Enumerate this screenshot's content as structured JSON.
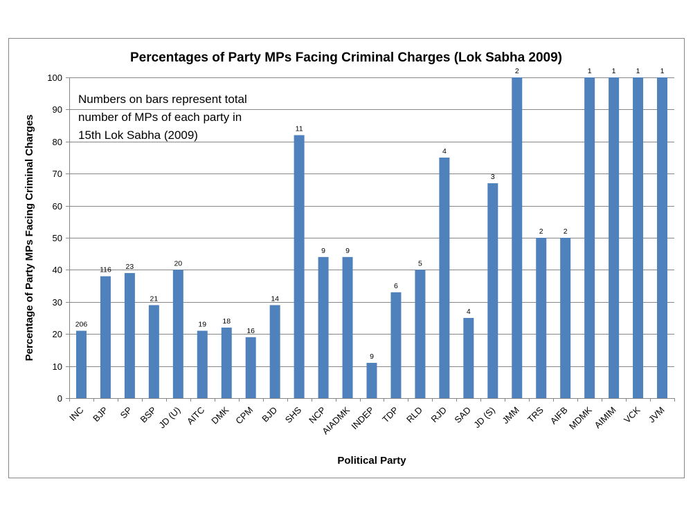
{
  "chart_data": {
    "type": "bar",
    "title": "Percentages of Party MPs Facing Criminal Charges (Lok Sabha 2009)",
    "xlabel": "Political Party",
    "ylabel": "Percentage of Party MPs Facing Criminal Charges",
    "ylim": [
      0,
      100
    ],
    "yticks": [
      0,
      10,
      20,
      30,
      40,
      50,
      60,
      70,
      80,
      90,
      100
    ],
    "grid": true,
    "annotation_lines": [
      "Numbers on bars represent  total",
      "number of MPs of each party in",
      "15th Lok Sabha (2009)"
    ],
    "categories": [
      "INC",
      "BJP",
      "SP",
      "BSP",
      "JD (U)",
      "AITC",
      "DMK",
      "CPM",
      "BJD",
      "SHS",
      "NCP",
      "AIADMK",
      "INDEP",
      "TDP",
      "RLD",
      "RJD",
      "SAD",
      "JD (S)",
      "JMM",
      "TRS",
      "AIFB",
      "MDMK",
      "AIMIM",
      "VCK",
      "JVM"
    ],
    "values": [
      21,
      38,
      39,
      29,
      40,
      21,
      22,
      19,
      29,
      82,
      44,
      44,
      11,
      33,
      40,
      75,
      25,
      67,
      100,
      50,
      50,
      100,
      100,
      100,
      100
    ],
    "bar_labels": [
      "206",
      "116",
      "23",
      "21",
      "20",
      "19",
      "18",
      "16",
      "14",
      "11",
      "9",
      "9",
      "9",
      "6",
      "5",
      "4",
      "4",
      "3",
      "2",
      "2",
      "2",
      "1",
      "1",
      "1",
      "1"
    ],
    "colors": {
      "bar": "#4F81BD",
      "grid": "#868686",
      "frame": "#868686"
    }
  }
}
